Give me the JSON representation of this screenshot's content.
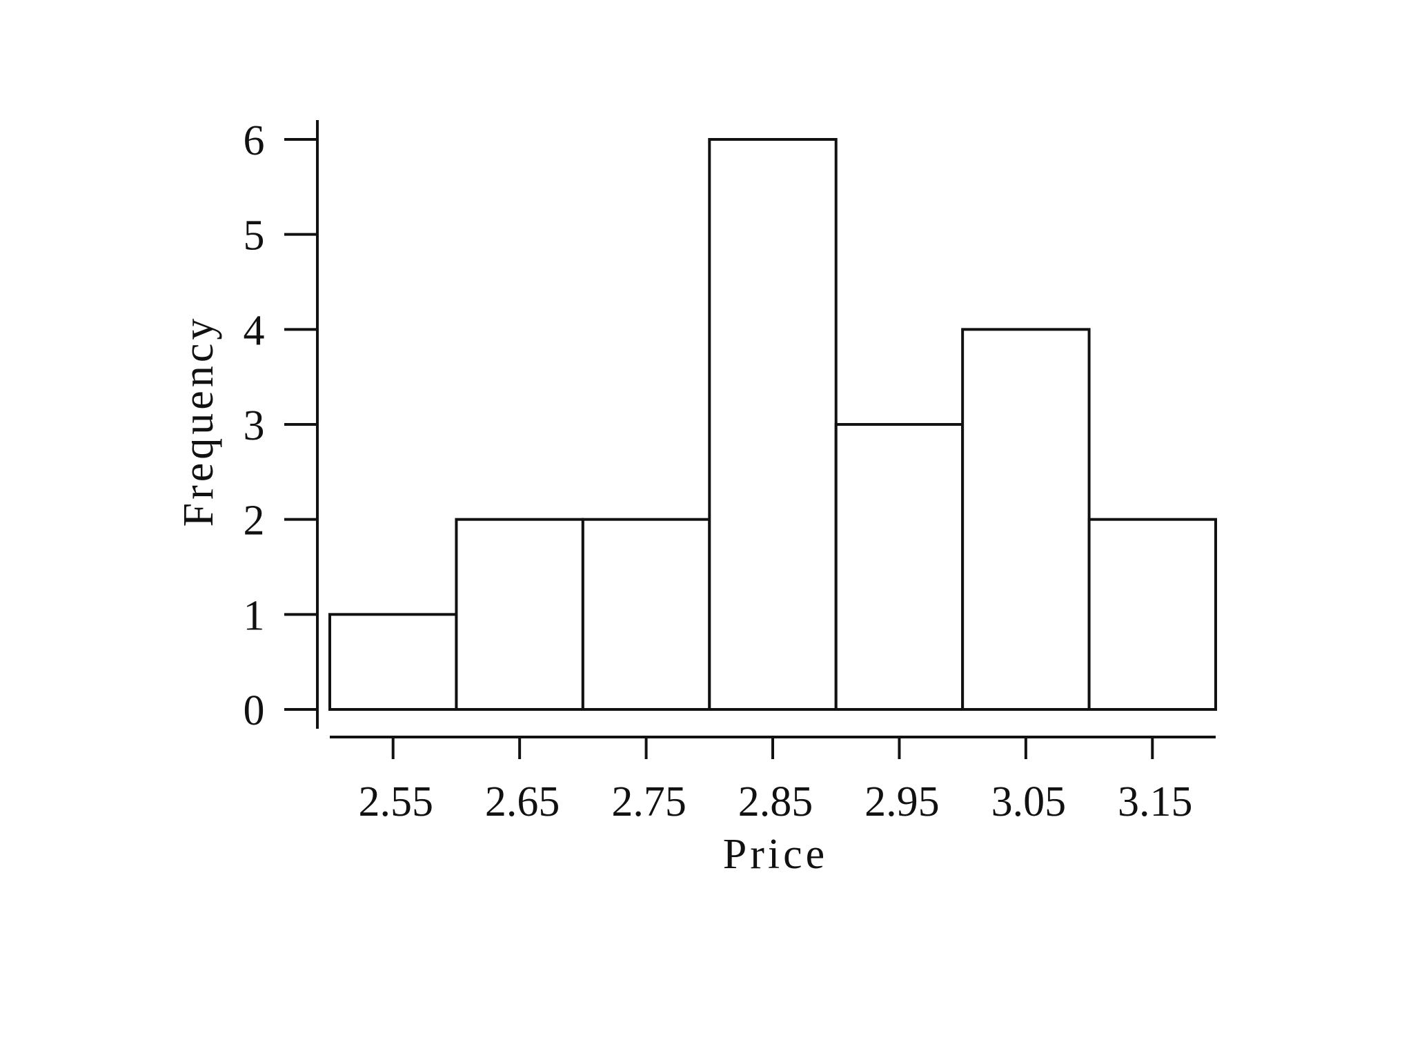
{
  "chart_data": {
    "type": "bar",
    "title": "",
    "xlabel": "Price",
    "ylabel": "Frequency",
    "bin_edges": [
      2.5,
      2.6,
      2.7,
      2.8,
      2.9,
      3.0,
      3.1,
      3.2
    ],
    "values": [
      1,
      2,
      2,
      6,
      3,
      4,
      2
    ],
    "x_ticks": [
      2.55,
      2.65,
      2.75,
      2.85,
      2.95,
      3.05,
      3.15
    ],
    "x_tick_labels": [
      "2.55",
      "2.65",
      "2.75",
      "2.85",
      "2.95",
      "3.05",
      "3.15"
    ],
    "y_ticks": [
      0,
      1,
      2,
      3,
      4,
      5,
      6
    ],
    "y_tick_labels": [
      "0",
      "1",
      "2",
      "3",
      "4",
      "5",
      "6"
    ],
    "xlim": [
      2.5,
      3.2
    ],
    "ylim": [
      0,
      6
    ],
    "grid": false,
    "legend": "none",
    "colors": {
      "bar_fill": "#ffffff",
      "bar_stroke": "#111111",
      "axis": "#111111",
      "background": "#ffffff"
    }
  }
}
